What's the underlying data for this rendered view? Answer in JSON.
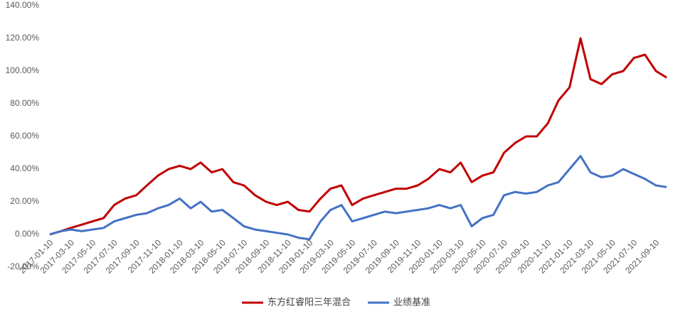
{
  "chart_data": {
    "type": "line",
    "x": [
      "2017-01-10",
      "2017-02-10",
      "2017-03-10",
      "2017-04-10",
      "2017-05-10",
      "2017-06-10",
      "2017-07-10",
      "2017-08-10",
      "2017-09-10",
      "2017-10-10",
      "2017-11-10",
      "2017-12-10",
      "2018-01-10",
      "2018-02-10",
      "2018-03-10",
      "2018-04-10",
      "2018-05-10",
      "2018-06-10",
      "2018-07-10",
      "2018-08-10",
      "2018-09-10",
      "2018-10-10",
      "2018-11-10",
      "2018-12-10",
      "2019-01-10",
      "2019-02-10",
      "2019-03-10",
      "2019-04-10",
      "2019-05-10",
      "2019-06-10",
      "2019-07-10",
      "2019-08-10",
      "2019-09-10",
      "2019-10-10",
      "2019-11-10",
      "2019-12-10",
      "2020-01-10",
      "2020-02-10",
      "2020-03-10",
      "2020-04-10",
      "2020-05-10",
      "2020-06-10",
      "2020-07-10",
      "2020-08-10",
      "2020-09-10",
      "2020-10-10",
      "2020-11-10",
      "2020-12-10",
      "2021-01-10",
      "2021-02-10",
      "2021-03-10",
      "2021-04-10",
      "2021-05-10",
      "2021-06-10",
      "2021-07-10",
      "2021-08-10",
      "2021-09-10",
      "2021-10-10"
    ],
    "series": [
      {
        "name": "东方红睿阳三年混合",
        "color": "#c00000",
        "values": [
          0,
          2,
          4,
          6,
          8,
          10,
          18,
          22,
          24,
          30,
          36,
          40,
          42,
          40,
          44,
          38,
          40,
          32,
          30,
          24,
          20,
          18,
          20,
          15,
          14,
          22,
          28,
          30,
          18,
          22,
          24,
          26,
          28,
          28,
          30,
          34,
          40,
          38,
          44,
          32,
          36,
          38,
          50,
          56,
          60,
          60,
          68,
          82,
          90,
          120,
          95,
          92,
          98,
          100,
          108,
          110,
          100,
          96
        ]
      },
      {
        "name": "业绩基准",
        "color": "#4472c4",
        "values": [
          0,
          2,
          3,
          2,
          3,
          4,
          8,
          10,
          12,
          13,
          16,
          18,
          22,
          16,
          20,
          14,
          15,
          10,
          5,
          3,
          2,
          1,
          0,
          -2,
          -3,
          8,
          15,
          18,
          8,
          10,
          12,
          14,
          13,
          14,
          15,
          16,
          18,
          16,
          18,
          5,
          10,
          12,
          24,
          26,
          25,
          26,
          30,
          32,
          40,
          48,
          38,
          35,
          36,
          40,
          37,
          34,
          30,
          29
        ]
      }
    ],
    "xlim": [
      "2017-01-10",
      "2021-10-20"
    ],
    "xticks": [
      "2017-01-10",
      "2017-03-10",
      "2017-05-10",
      "2017-07-10",
      "2017-09-10",
      "2017-11-10",
      "2018-01-10",
      "2018-03-10",
      "2018-05-10",
      "2018-07-10",
      "2018-09-10",
      "2018-11-10",
      "2019-01-10",
      "2019-03-10",
      "2019-05-10",
      "2019-07-10",
      "2019-09-10",
      "2019-11-10",
      "2020-01-10",
      "2020-03-10",
      "2020-05-10",
      "2020-07-10",
      "2020-09-10",
      "2020-11-10",
      "2021-01-10",
      "2021-03-10",
      "2021-05-10",
      "2021-07-10",
      "2021-09-10"
    ],
    "ylim": [
      -20,
      140
    ],
    "yticks": [
      {
        "value": -20,
        "label": "-20.00%"
      },
      {
        "value": 0,
        "label": "0.00%"
      },
      {
        "value": 20,
        "label": "20.00%"
      },
      {
        "value": 40,
        "label": "40.00%"
      },
      {
        "value": 60,
        "label": "60.00%"
      },
      {
        "value": 80,
        "label": "80.00%"
      },
      {
        "value": 100,
        "label": "100.00%"
      },
      {
        "value": 120,
        "label": "120.00%"
      },
      {
        "value": 140,
        "label": "140.00%"
      }
    ],
    "legend": "bottom"
  }
}
